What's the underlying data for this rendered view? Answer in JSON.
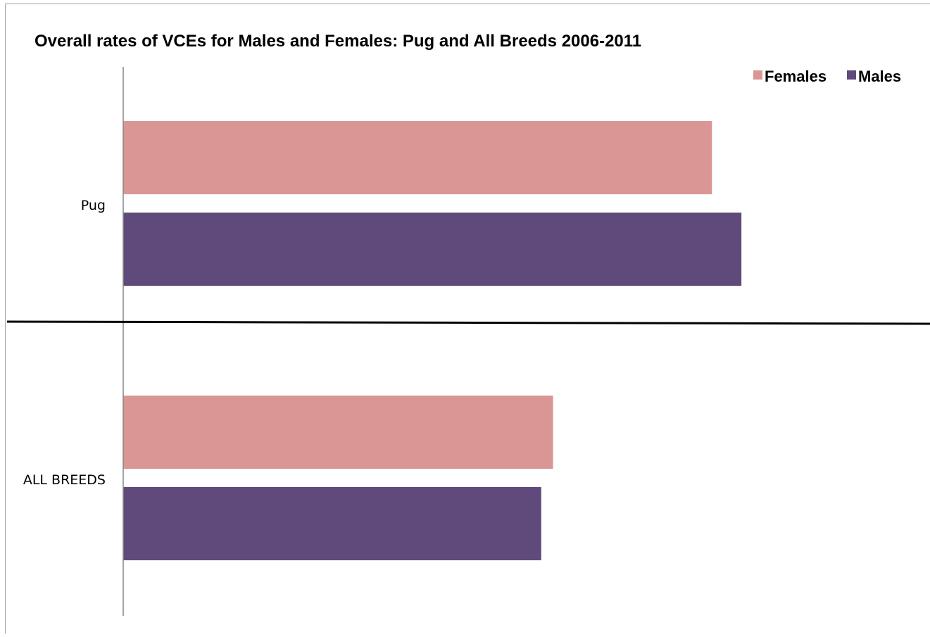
{
  "chart_data": {
    "type": "bar",
    "orientation": "horizontal",
    "title": "Overall rates of VCEs for Males and Females: Pug and All Breeds 2006-2011",
    "categories": [
      "Pug",
      "ALL BREEDS"
    ],
    "series": [
      {
        "name": "Females",
        "values": [
          0.2,
          0.146
        ],
        "color": "#d99694"
      },
      {
        "name": "Males",
        "values": [
          0.21,
          0.142
        ],
        "color": "#604a7b"
      }
    ],
    "xlim": [
      0,
      0.27
    ],
    "legend_position": "top-right",
    "grid": false
  }
}
